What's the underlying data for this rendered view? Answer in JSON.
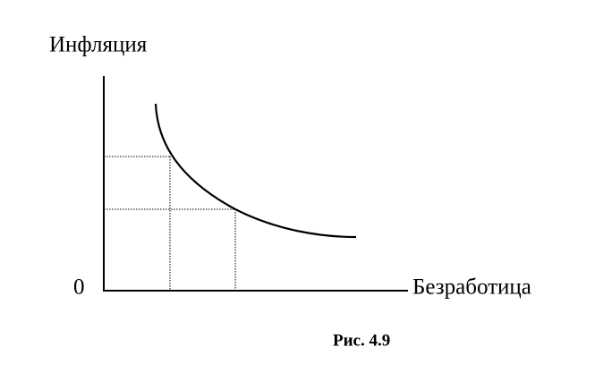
{
  "y_axis_label": "Инфляция",
  "x_axis_label": "Безработица",
  "origin_label": "0",
  "caption": "Рис. 4.9"
}
